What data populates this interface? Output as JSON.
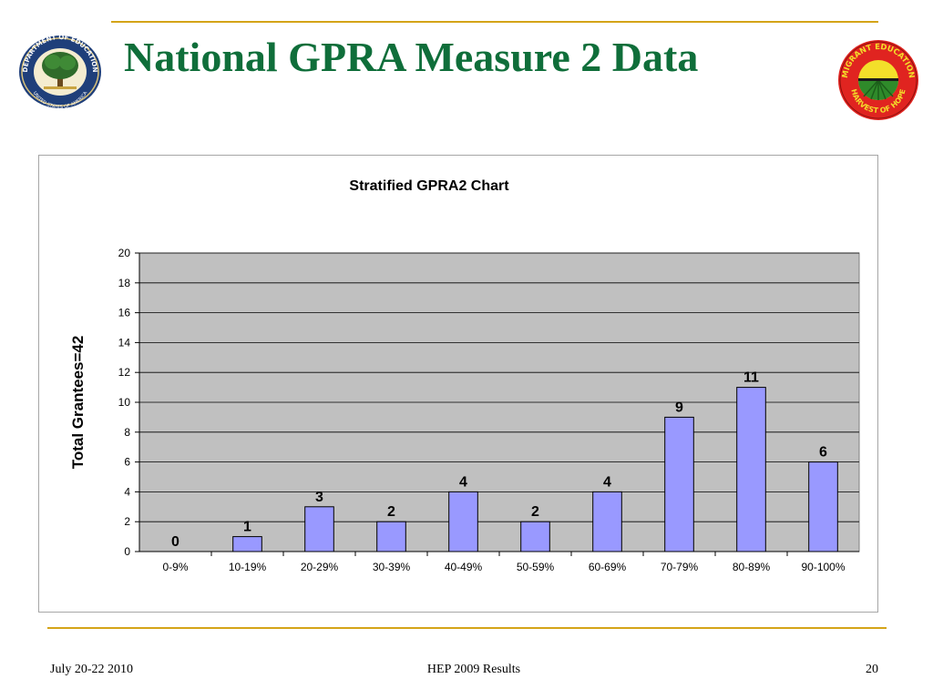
{
  "slide": {
    "title": "National GPRA Measure 2 Data",
    "footer_left": "July 20-22 2010",
    "footer_center": "HEP 2009 Results",
    "page_number": "20"
  },
  "logos": {
    "left_icon": "department-of-education-seal",
    "left_text_top": "DEPARTMENT OF EDUCATION",
    "left_text_bottom": "UNITED STATES OF AMERICA",
    "right_icon": "migrant-education-logo",
    "right_text_top": "MIGRANT EDUCATION",
    "right_text_bottom": "HARVEST OF HOPE"
  },
  "colors": {
    "title": "#0f6e3a",
    "rule": "#d4a418",
    "bar_fill": "#9999ff",
    "plot_bg": "#c0c0c0"
  },
  "chart_data": {
    "type": "bar",
    "title": "Stratified GPRA2 Chart",
    "xlabel": "",
    "ylabel": "Total Grantees=42",
    "categories": [
      "0-9%",
      "10-19%",
      "20-29%",
      "30-39%",
      "40-49%",
      "50-59%",
      "60-69%",
      "70-79%",
      "80-89%",
      "90-100%"
    ],
    "values": [
      0,
      1,
      3,
      2,
      4,
      2,
      4,
      9,
      11,
      6
    ],
    "ylim": [
      0,
      20
    ],
    "yticks": [
      0,
      2,
      4,
      6,
      8,
      10,
      12,
      14,
      16,
      18,
      20
    ],
    "grid": true,
    "legend": "none",
    "data_labels": true
  }
}
